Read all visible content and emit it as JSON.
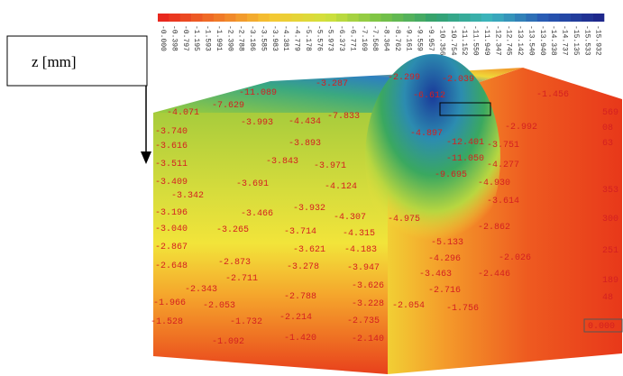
{
  "axis_label": "z [mm]",
  "legend": {
    "labels": [
      "-0.000",
      "-0.398",
      "-0.797",
      "-1.195",
      "-1.593",
      "-1.991",
      "-2.390",
      "-2.788",
      "-3.186",
      "-3.585",
      "-3.983",
      "-4.381",
      "-4.779",
      "-5.178",
      "-5.576",
      "-5.973",
      "-6.373",
      "-6.771",
      "-7.169",
      "-7.568",
      "-8.364",
      "-8.762",
      "-9.161",
      "-9.559",
      "-9.957",
      "-10.356",
      "-10.754",
      "-11.152",
      "-11.550",
      "-11.949",
      "-12.347",
      "-12.745",
      "-13.142",
      "-13.540",
      "-13.940",
      "-14.338",
      "-14.737",
      "-15.135",
      "-15.533",
      "-15.932"
    ]
  },
  "contour_labels": [
    "-2.299",
    "-2.039",
    "-3.287",
    "-11.089",
    "-6.612",
    "-7.629",
    "-4.071",
    "-7.833",
    "-3.993",
    "-4.434",
    "-4.897",
    "-3.740",
    "-12.401",
    "-3.893",
    "-3.616",
    "-11.050",
    "-3.511",
    "-3.843",
    "-3.971",
    "-9.695",
    "-3.409",
    "-3.691",
    "-4.124",
    "-3.342",
    "-3.932",
    "-3.196",
    "-3.466",
    "-4.307",
    "-4.975",
    "-3.040",
    "-3.265",
    "-3.714",
    "-4.315",
    "-2.862",
    "-5.133",
    "-2.867",
    "-3.621",
    "-4.183",
    "-4.296",
    "-2.026",
    "-2.648",
    "-2.873",
    "-3.278",
    "-3.947",
    "-3.463",
    "-2.446",
    "-2.711",
    "-3.626",
    "-2.716",
    "-2.343",
    "-2.788",
    "-1.966",
    "-2.053",
    "-3.228",
    "-2.054",
    "-1.756",
    "-2.214",
    "-1.732",
    "-2.735",
    "-1.420",
    "-2.140",
    "-1.092",
    "-1.528",
    "-2.992",
    "-3.751",
    "-4.277",
    "-4.930",
    "-3.614",
    "-1.456"
  ],
  "edge_labels": [
    "569",
    "08",
    "63",
    "353",
    "300",
    "251",
    "189",
    "48",
    "0.000"
  ]
}
